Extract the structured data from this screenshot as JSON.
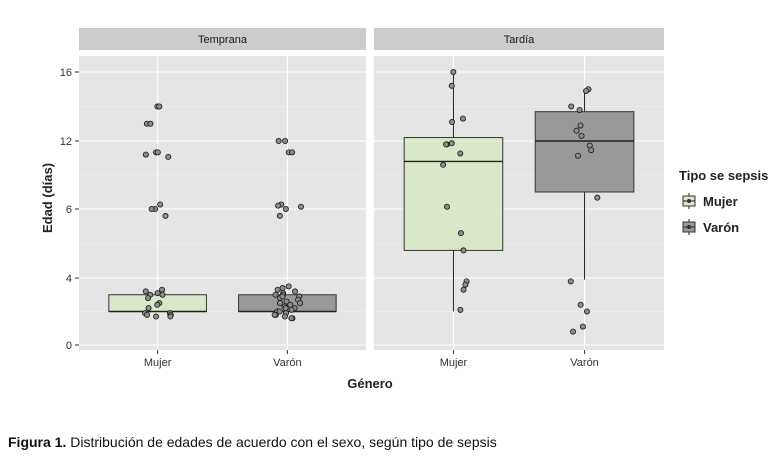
{
  "chart_data": {
    "type": "boxplot",
    "ylabel": "Edad (días)",
    "xlabel": "Género",
    "y_ticks": [
      "0",
      "4",
      "6",
      "12",
      "16"
    ],
    "categories": [
      "Mujer",
      "Varón"
    ],
    "legend": {
      "title": "Tipo se sepsis",
      "position": "right",
      "entries": [
        {
          "label": "Mujer",
          "color": "#d9e8c8"
        },
        {
          "label": "Varón",
          "color": "#999999"
        }
      ]
    },
    "panels": [
      {
        "title": "Temprana",
        "boxes": [
          {
            "category": "Mujer",
            "color": "#d9e8c8",
            "q1": 2.0,
            "median": 2.0,
            "q3": 3.0,
            "whisker_low": 2.0,
            "whisker_high": 3.0
          },
          {
            "category": "Varón",
            "color": "#999999",
            "q1": 2.0,
            "median": 2.0,
            "q3": 3.0,
            "whisker_low": 2.0,
            "whisker_high": 3.0
          }
        ],
        "points": [
          {
            "category": "Mujer",
            "values": [
              14,
              14,
              13,
              13,
              11,
              11,
              10.8,
              10.6,
              6.4,
              6,
              6,
              5.8,
              3.3,
              3.2,
              3.1,
              3.0,
              3.0,
              2.8,
              2.5,
              2.4,
              2.2,
              1.9,
              1.9,
              1.8,
              1.8,
              1.7,
              1.7
            ]
          },
          {
            "category": "Varón",
            "values": [
              12,
              12,
              11,
              11,
              6.4,
              6.3,
              6.2,
              6.0,
              5.8,
              3.5,
              3.4,
              3.3,
              3.2,
              3.1,
              3.0,
              3.0,
              2.9,
              2.8,
              2.7,
              2.6,
              2.5,
              2.4,
              2.3,
              2.2,
              2.1,
              2.0,
              2.0,
              1.9,
              1.8,
              1.8,
              1.7,
              1.6,
              1.6,
              2.5,
              2.9,
              2.2
            ]
          }
        ]
      },
      {
        "title": "Tardía",
        "boxes": [
          {
            "category": "Mujer",
            "color": "#d9e8c8",
            "q1": 4.8,
            "median": 10.2,
            "q3": 12.2,
            "whisker_low": 2.0,
            "whisker_high": 16
          },
          {
            "category": "Varón",
            "color": "#999999",
            "q1": 7.5,
            "median": 12.0,
            "q3": 13.7,
            "whisker_low": 3.9,
            "whisker_high": 15
          }
        ],
        "points": [
          {
            "category": "Mujer",
            "values": [
              16,
              15.2,
              13.3,
              13.1,
              11.8,
              11.7,
              11.7,
              10.9,
              9.9,
              6.2,
              5.3,
              4.8,
              3.8,
              3.6,
              3.3,
              2.1
            ]
          },
          {
            "category": "Varón",
            "values": [
              15,
              14.9,
              14,
              13.8,
              12.9,
              12.6,
              12.3,
              11.6,
              11.2,
              10.7,
              7,
              3.8,
              2.4,
              2.0,
              1.1,
              0.8
            ]
          }
        ]
      }
    ]
  },
  "caption": {
    "label": "Figura 1.",
    "text": " Distribución de edades de acuerdo con el sexo, según tipo de sepsis"
  }
}
